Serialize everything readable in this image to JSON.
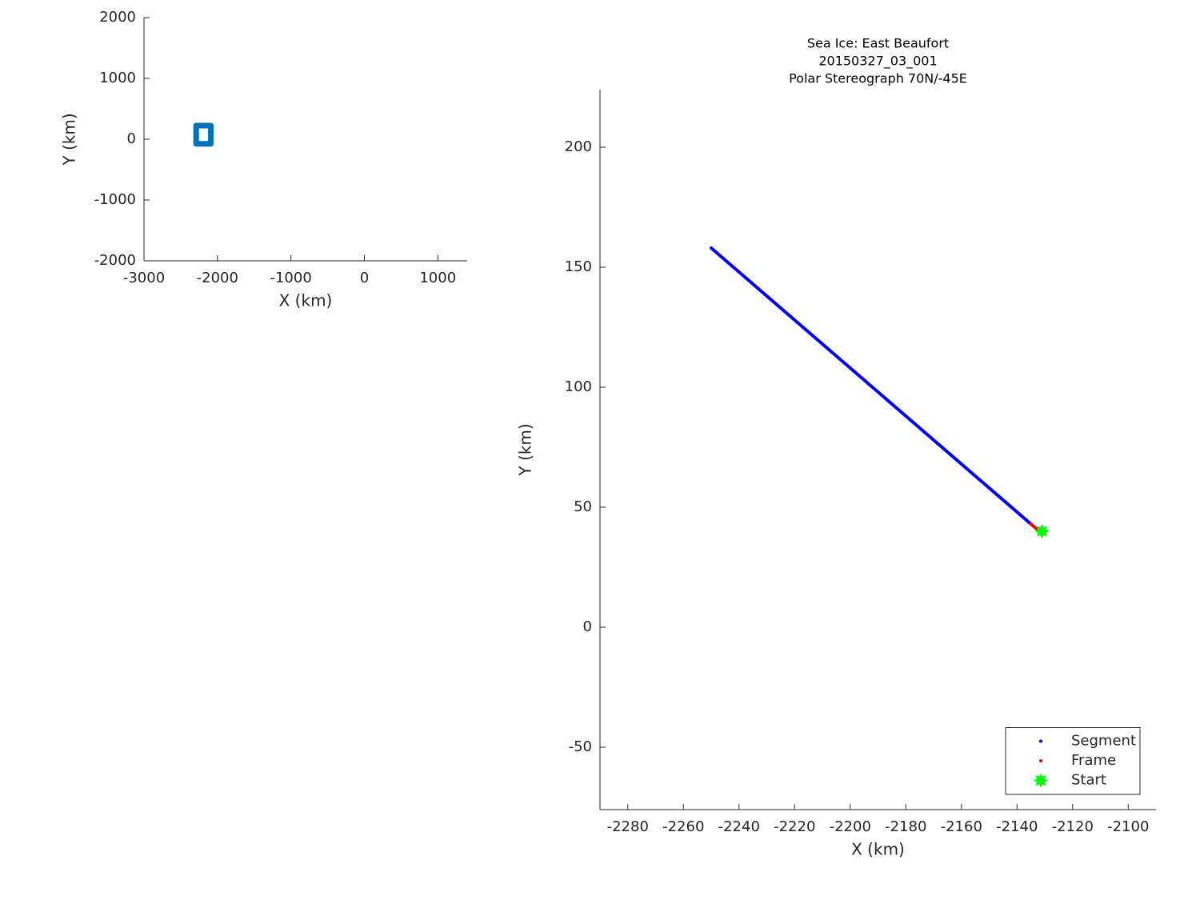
{
  "chart_data": [
    {
      "type": "line",
      "x_label": "X (km)",
      "y_label": "Y (km)",
      "xlim": [
        -3000,
        1400
      ],
      "ylim": [
        -2000,
        2000
      ],
      "xticks": [
        -3000,
        -2000,
        -1000,
        0,
        1000
      ],
      "yticks": [
        -2000,
        -1000,
        0,
        1000,
        2000
      ],
      "series": [
        {
          "color": "#0072bd",
          "marker": "none",
          "x": [
            -2290,
            -2090,
            -2090,
            -2290,
            -2290
          ],
          "y": [
            -76,
            -76,
            224,
            224,
            -76
          ]
        }
      ]
    },
    {
      "type": "line",
      "title": [
        "Sea Ice: East Beaufort",
        "20150327_03_001",
        "Polar Stereograph 70N/-45E"
      ],
      "x_label": "X (km)",
      "y_label": "Y (km)",
      "xlim": [
        -2290,
        -2090
      ],
      "ylim": [
        -76,
        224
      ],
      "xticks": [
        -2280,
        -2260,
        -2240,
        -2220,
        -2200,
        -2180,
        -2160,
        -2140,
        -2120,
        -2100
      ],
      "yticks": [
        -50,
        0,
        50,
        100,
        150,
        200
      ],
      "legend": "lower right",
      "series": [
        {
          "name": "Segment",
          "color": "#0000ff",
          "marker": ".",
          "x": [
            -2250,
            -2220,
            -2190,
            -2160,
            -2134
          ],
          "y": [
            158,
            128,
            98,
            68,
            42
          ]
        },
        {
          "name": "Frame",
          "color": "#ff0000",
          "marker": ".",
          "x": [
            -2135,
            -2133
          ],
          "y": [
            43,
            41
          ]
        },
        {
          "name": "Start",
          "color": "#00ff00",
          "marker": "*",
          "x": [
            -2131
          ],
          "y": [
            40
          ]
        }
      ]
    }
  ]
}
